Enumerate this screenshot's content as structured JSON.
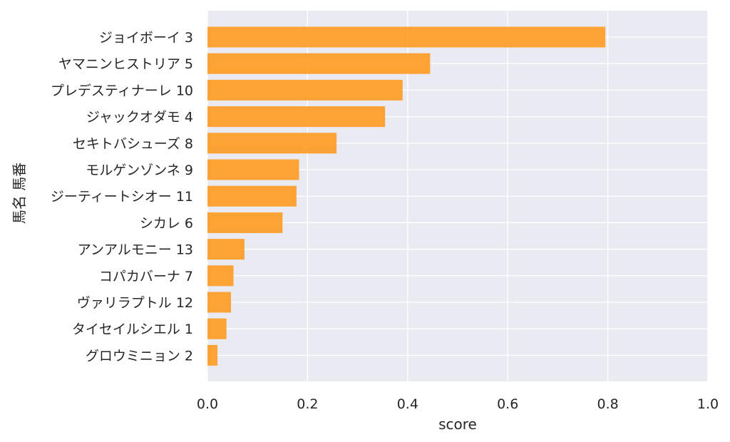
{
  "chart_data": {
    "type": "bar",
    "orientation": "horizontal",
    "categories": [
      "ジョイボーイ 3",
      "ヤマニンヒストリア 5",
      "プレデスティナーレ 10",
      "ジャックオダモ 4",
      "セキトバシューズ 8",
      "モルゲンゾンネ 9",
      "ジーティートシオー 11",
      "シカレ 6",
      "アンアルモニー 13",
      "コパカバーナ 7",
      "ヴァリラプトル 12",
      "タイセイルシエル 1",
      "グロウミニョン 2"
    ],
    "values": [
      0.795,
      0.445,
      0.39,
      0.355,
      0.258,
      0.183,
      0.178,
      0.15,
      0.074,
      0.052,
      0.047,
      0.038,
      0.02
    ],
    "title": "",
    "xlabel": "score",
    "ylabel": "馬名 馬番",
    "xlim": [
      0,
      1.0
    ],
    "xticks": [
      "0.0",
      "0.2",
      "0.4",
      "0.6",
      "0.8",
      "1.0"
    ],
    "grid": true,
    "colors": {
      "bar": "#FF9A1F",
      "background": "#EAEAF2",
      "grid": "#FFFFFF",
      "text": "#262626"
    }
  }
}
